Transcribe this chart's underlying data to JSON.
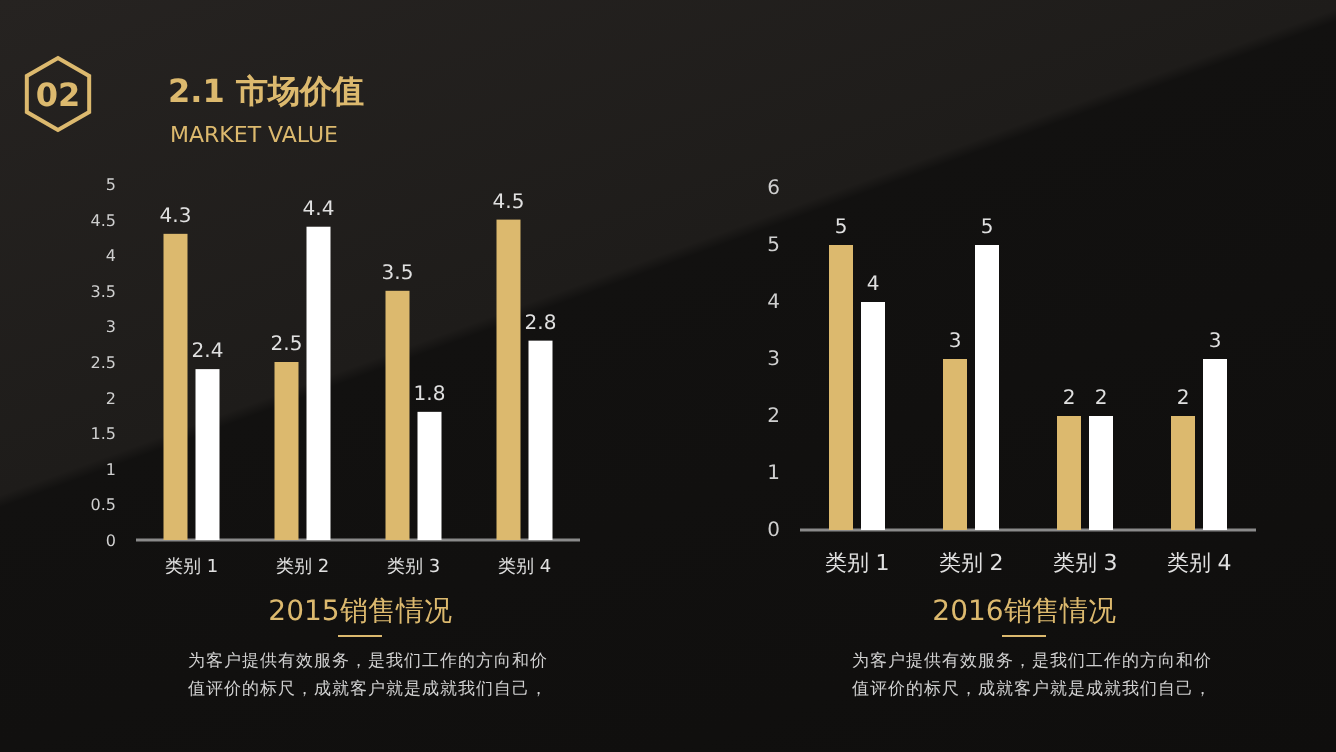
{
  "chart_data": [
    {
      "type": "other",
      "title": "2.1 市场价值",
      "subtitle": "MARKET VALUE",
      "annotations": [
        "02"
      ]
    },
    {
      "type": "bar",
      "title": "2015销售情况",
      "annotations": [
        "为客户提供有效服务，是我们工作的方向和价值评价的标尺，成就客户就是成就我们自己，"
      ],
      "categories": [
        "类别 1",
        "类别 2",
        "类别 3",
        "类别 4"
      ],
      "series": [
        {
          "color": "#dcb96e",
          "values": [
            4.3,
            2.5,
            3.5,
            4.5
          ]
        },
        {
          "color": "#ffffff",
          "values": [
            2.4,
            4.4,
            1.8,
            2.8
          ]
        }
      ],
      "ylim": [
        0,
        5
      ],
      "yticks": [
        0,
        0.5,
        1,
        1.5,
        2,
        2.5,
        3,
        3.5,
        4,
        4.5,
        5
      ],
      "data_labels": true
    },
    {
      "type": "bar",
      "title": "2016销售情况",
      "annotations": [
        "为客户提供有效服务，是我们工作的方向和价值评价的标尺，成就客户就是成就我们自己，"
      ],
      "categories": [
        "类别 1",
        "类别 2",
        "类别 3",
        "类别 4"
      ],
      "series": [
        {
          "color": "#dcb96e",
          "values": [
            5,
            3,
            2,
            2
          ]
        },
        {
          "color": "#ffffff",
          "values": [
            4,
            5,
            2,
            3
          ]
        }
      ],
      "ylim": [
        0,
        6
      ],
      "yticks": [
        0,
        1,
        2,
        3,
        4,
        5,
        6
      ],
      "data_labels": true
    }
  ]
}
